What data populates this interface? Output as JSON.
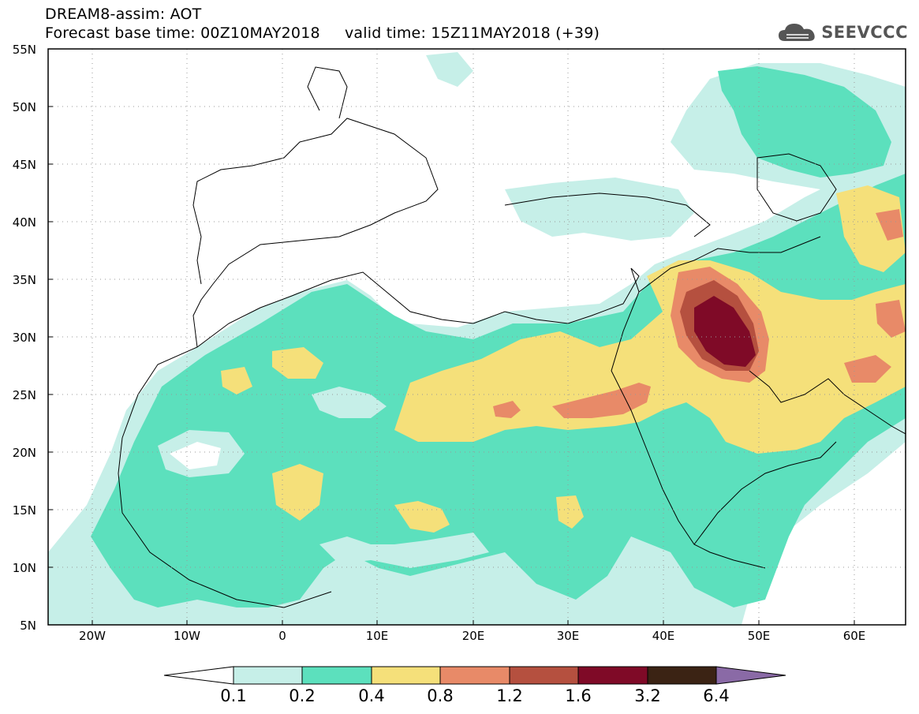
{
  "header": {
    "model_line": "DREAM8-assim: AOT",
    "time_line": "Forecast base time: 00Z10MAY2018     valid time: 15Z11MAY2018 (+39)",
    "brand": "SEEVCCC",
    "brand_icon": "cloud-icon"
  },
  "map": {
    "projection": "lat-lon",
    "lat_range": [
      5,
      55
    ],
    "lon_range": [
      -25,
      65
    ],
    "lat_labels": [
      "55N",
      "50N",
      "45N",
      "40N",
      "35N",
      "30N",
      "25N",
      "20N",
      "15N",
      "10N",
      "5N"
    ],
    "lon_labels": [
      "20W",
      "10W",
      "0",
      "10E",
      "20E",
      "30E",
      "40E",
      "50E",
      "60E"
    ],
    "grid": "dotted",
    "field": "Aerosol optical thickness"
  },
  "legend": {
    "levels": [
      "0.1",
      "0.2",
      "0.4",
      "0.8",
      "1.2",
      "1.6",
      "3.2",
      "6.4"
    ],
    "colors": [
      "#ffffff",
      "#c6efe8",
      "#5ce0bd",
      "#f5e07a",
      "#e88a68",
      "#b5503f",
      "#7f0a27",
      "#3b2314",
      "#8a6aa6"
    ]
  }
}
